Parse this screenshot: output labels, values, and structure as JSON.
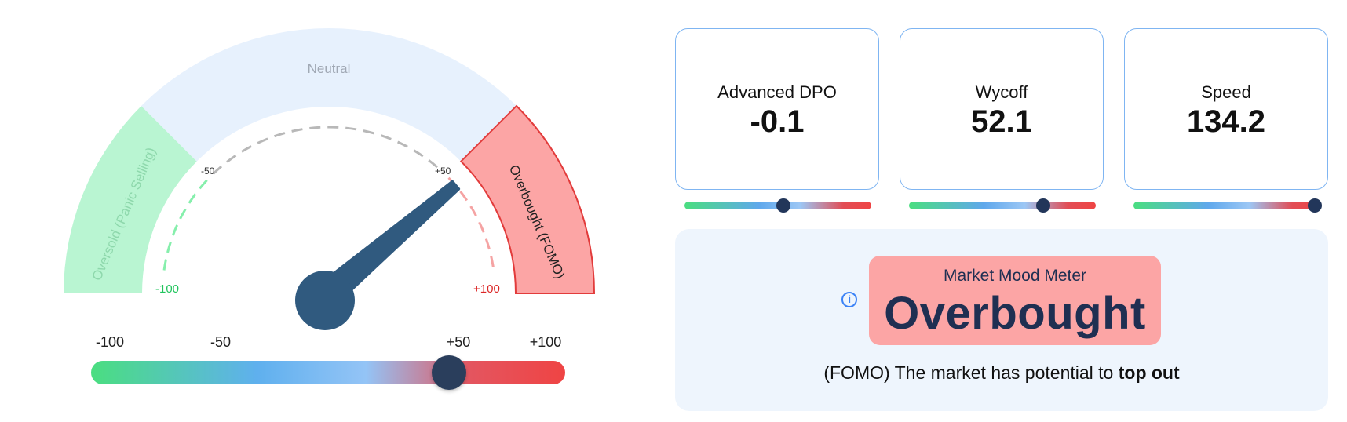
{
  "gauge": {
    "zones": {
      "oversold": "Oversold (Panic Selling)",
      "neutral": "Neutral",
      "overbought": "Overbought (FOMO)"
    },
    "inner_ticks": {
      "min": "-100",
      "neg50": "-50",
      "pos50": "+50",
      "max": "+100"
    },
    "needle_value": 55,
    "colors": {
      "oversold_fill": "#b9f5d2",
      "neutral_fill": "#e7f1fd",
      "overbought_fill": "#fca5a5",
      "overbought_border": "#e23b3b",
      "needle": "#305a7f"
    }
  },
  "scale": {
    "labels": [
      "-100",
      "-50",
      "+50",
      "+100"
    ],
    "value": 55
  },
  "indicators": [
    {
      "label": "Advanced DPO",
      "value": "-0.1",
      "level": 0.53
    },
    {
      "label": "Wycoff",
      "value": "52.1",
      "level": 0.72
    },
    {
      "label": "Speed",
      "value": "134.2",
      "level": 0.97
    }
  ],
  "mood": {
    "title": "Market Mood Meter",
    "value": "Overbought",
    "info_icon": "info-icon",
    "desc_prefix": "(FOMO) The market has potential to ",
    "desc_bold": "top out"
  }
}
